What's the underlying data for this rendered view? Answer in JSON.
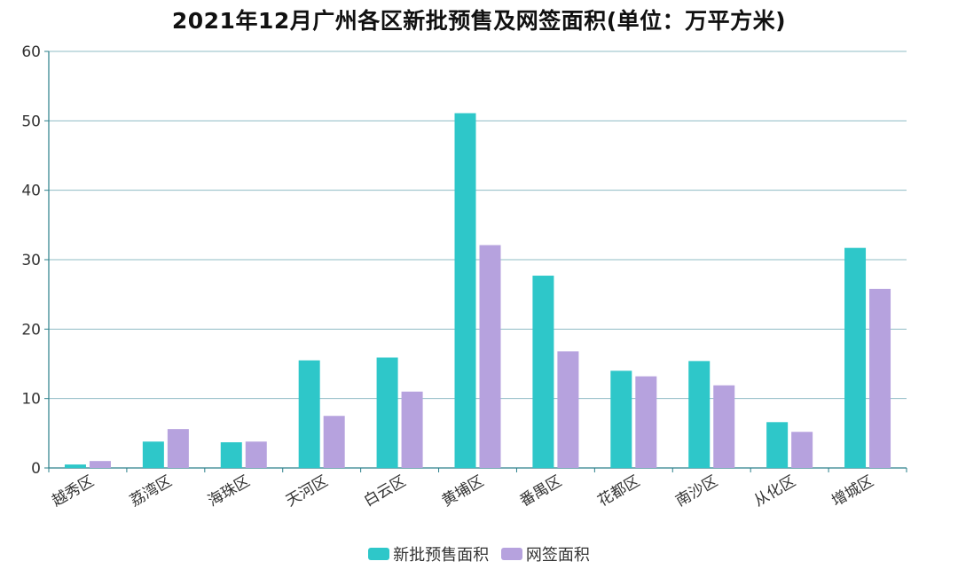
{
  "chart_data": {
    "type": "bar",
    "title": "2021年12月广州各区新批预售及网签面积(单位：万平方米)",
    "categories": [
      "越秀区",
      "荔湾区",
      "海珠区",
      "天河区",
      "白云区",
      "黄埔区",
      "番禺区",
      "花都区",
      "南沙区",
      "从化区",
      "增城区"
    ],
    "series": [
      {
        "name": "新批预售面积",
        "color": "#2ec7c9",
        "values": [
          0.5,
          3.8,
          3.7,
          15.5,
          15.9,
          51.1,
          27.7,
          14.0,
          15.4,
          6.6,
          31.7
        ]
      },
      {
        "name": "网签面积",
        "color": "#b6a2de",
        "values": [
          1.0,
          5.6,
          3.8,
          7.5,
          11.0,
          32.1,
          16.8,
          13.2,
          11.9,
          5.2,
          25.8
        ]
      }
    ],
    "y_ticks": [
      "0",
      "10",
      "20",
      "30",
      "40",
      "50",
      "60"
    ],
    "ylim": [
      0,
      60
    ],
    "grid": true,
    "legend_position": "bottom-center"
  }
}
